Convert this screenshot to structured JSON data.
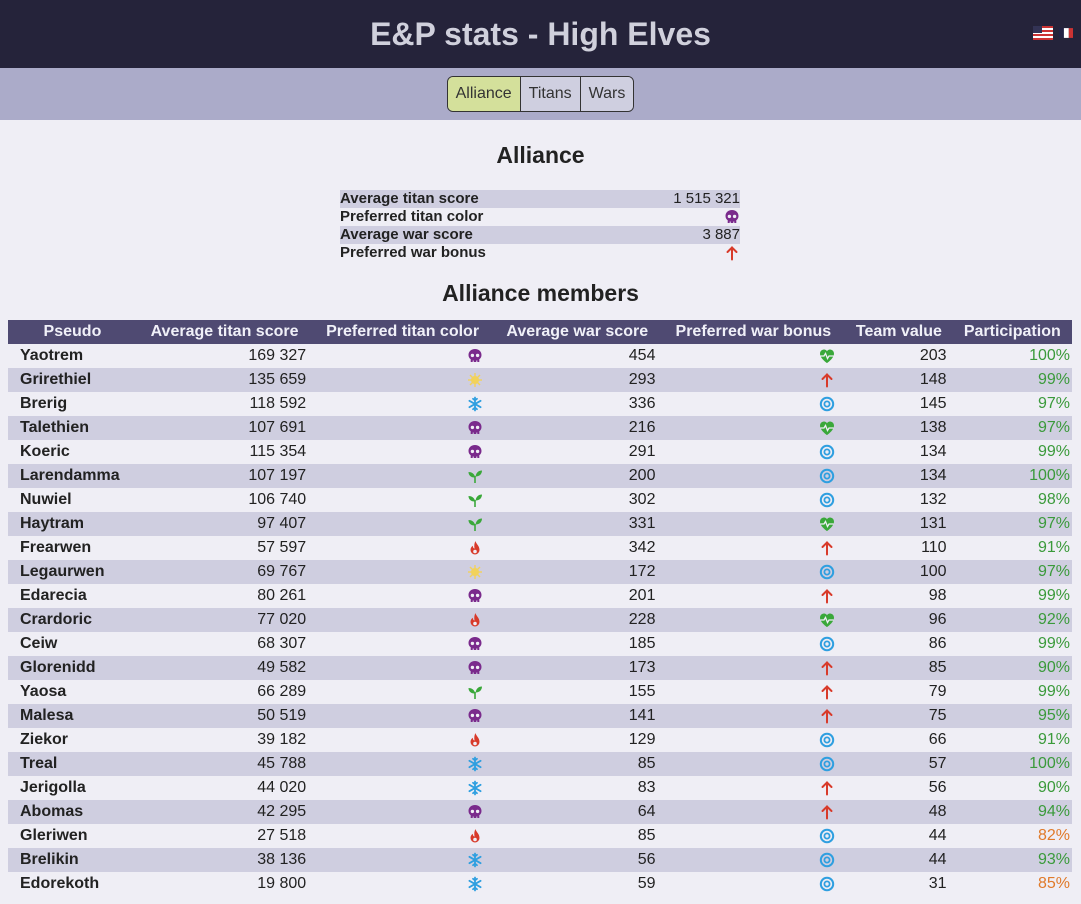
{
  "header": {
    "title": "E&P stats - High Elves"
  },
  "nav": {
    "tabs": [
      "Alliance",
      "Titans",
      "Wars"
    ],
    "active": "Alliance"
  },
  "alliance": {
    "title": "Alliance",
    "rows": [
      {
        "label": "Average titan score",
        "value": "1 515 321"
      },
      {
        "label": "Preferred titan color",
        "icon": "dark"
      },
      {
        "label": "Average war score",
        "value": "3 887"
      },
      {
        "label": "Preferred war bonus",
        "icon": "arrow"
      }
    ]
  },
  "members": {
    "title": "Alliance members",
    "columns": [
      "Pseudo",
      "Average titan score",
      "Preferred titan color",
      "Average war score",
      "Preferred war bonus",
      "Team value",
      "Participation"
    ],
    "rows": [
      {
        "name": "Yaotrem",
        "titan": "169 327",
        "color": "dark",
        "war": "454",
        "bonus": "heal",
        "team": "203",
        "part": "100%"
      },
      {
        "name": "Grirethiel",
        "titan": "135 659",
        "color": "holy",
        "war": "293",
        "bonus": "arrow",
        "team": "148",
        "part": "99%"
      },
      {
        "name": "Brerig",
        "titan": "118 592",
        "color": "ice",
        "war": "336",
        "bonus": "magic",
        "team": "145",
        "part": "97%"
      },
      {
        "name": "Talethien",
        "titan": "107 691",
        "color": "dark",
        "war": "216",
        "bonus": "heal",
        "team": "138",
        "part": "97%"
      },
      {
        "name": "Koeric",
        "titan": "115 354",
        "color": "dark",
        "war": "291",
        "bonus": "magic",
        "team": "134",
        "part": "99%"
      },
      {
        "name": "Larendamma",
        "titan": "107 197",
        "color": "nature",
        "war": "200",
        "bonus": "magic",
        "team": "134",
        "part": "100%"
      },
      {
        "name": "Nuwiel",
        "titan": "106 740",
        "color": "nature",
        "war": "302",
        "bonus": "magic",
        "team": "132",
        "part": "98%"
      },
      {
        "name": "Haytram",
        "titan": "97 407",
        "color": "nature",
        "war": "331",
        "bonus": "heal",
        "team": "131",
        "part": "97%"
      },
      {
        "name": "Frearwen",
        "titan": "57 597",
        "color": "fire",
        "war": "342",
        "bonus": "arrow",
        "team": "110",
        "part": "91%"
      },
      {
        "name": "Legaurwen",
        "titan": "69 767",
        "color": "holy",
        "war": "172",
        "bonus": "magic",
        "team": "100",
        "part": "97%"
      },
      {
        "name": "Edarecia",
        "titan": "80 261",
        "color": "dark",
        "war": "201",
        "bonus": "arrow",
        "team": "98",
        "part": "99%"
      },
      {
        "name": "Crardoric",
        "titan": "77 020",
        "color": "fire",
        "war": "228",
        "bonus": "heal",
        "team": "96",
        "part": "92%"
      },
      {
        "name": "Ceiw",
        "titan": "68 307",
        "color": "dark",
        "war": "185",
        "bonus": "magic",
        "team": "86",
        "part": "99%"
      },
      {
        "name": "Glorenidd",
        "titan": "49 582",
        "color": "dark",
        "war": "173",
        "bonus": "arrow",
        "team": "85",
        "part": "90%"
      },
      {
        "name": "Yaosa",
        "titan": "66 289",
        "color": "nature",
        "war": "155",
        "bonus": "arrow",
        "team": "79",
        "part": "99%"
      },
      {
        "name": "Malesa",
        "titan": "50 519",
        "color": "dark",
        "war": "141",
        "bonus": "arrow",
        "team": "75",
        "part": "95%"
      },
      {
        "name": "Ziekor",
        "titan": "39 182",
        "color": "fire",
        "war": "129",
        "bonus": "magic",
        "team": "66",
        "part": "91%"
      },
      {
        "name": "Treal",
        "titan": "45 788",
        "color": "ice",
        "war": "85",
        "bonus": "magic",
        "team": "57",
        "part": "100%"
      },
      {
        "name": "Jerigolla",
        "titan": "44 020",
        "color": "ice",
        "war": "83",
        "bonus": "arrow",
        "team": "56",
        "part": "90%"
      },
      {
        "name": "Abomas",
        "titan": "42 295",
        "color": "dark",
        "war": "64",
        "bonus": "arrow",
        "team": "48",
        "part": "94%"
      },
      {
        "name": "Gleriwen",
        "titan": "27 518",
        "color": "fire",
        "war": "85",
        "bonus": "magic",
        "team": "44",
        "part": "82%"
      },
      {
        "name": "Brelikin",
        "titan": "38 136",
        "color": "ice",
        "war": "56",
        "bonus": "magic",
        "team": "44",
        "part": "93%"
      },
      {
        "name": "Edorekoth",
        "titan": "19 800",
        "color": "ice",
        "war": "59",
        "bonus": "magic",
        "team": "31",
        "part": "85%"
      }
    ]
  },
  "colors": {
    "header_bg": "#25233a",
    "nav_bg": "#ababc9",
    "table_header_bg": "#4f4a72",
    "row_alt_bg": "#cfcee0",
    "dark": "#7a2a8c",
    "holy": "#f2d25a",
    "ice": "#2f9fe0",
    "nature": "#3aa83a",
    "fire": "#d83a2a",
    "heal": "#3aa83a",
    "arrow": "#d83a2a",
    "magic": "#2f9fe0",
    "part_high": "#3a9a3a",
    "part_low": "#e07a2a"
  }
}
